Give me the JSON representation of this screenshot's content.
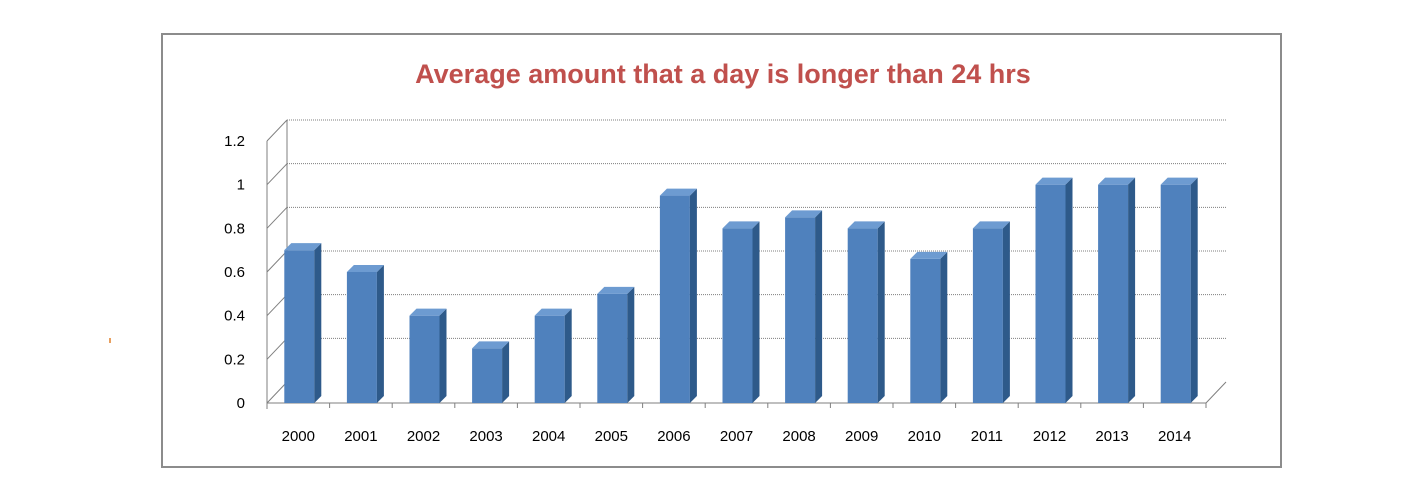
{
  "chart_data": {
    "type": "bar",
    "title": "Average amount that a day is longer than 24 hrs",
    "xlabel": "",
    "ylabel": "",
    "categories": [
      "2000",
      "2001",
      "2002",
      "2003",
      "2004",
      "2005",
      "2006",
      "2007",
      "2008",
      "2009",
      "2010",
      "2011",
      "2012",
      "2013",
      "2014"
    ],
    "values": [
      0.7,
      0.6,
      0.4,
      0.25,
      0.4,
      0.5,
      0.95,
      0.8,
      0.85,
      0.8,
      0.66,
      0.8,
      1.0,
      1.0,
      1.0
    ],
    "ylim": [
      0,
      1.2
    ],
    "yticks": [
      "0",
      "0.2",
      "0.4",
      "0.6",
      "0.8",
      "1",
      "1.2"
    ],
    "grid": true,
    "legend": "none",
    "style": "3d-column",
    "colors": {
      "title": "#c0504d",
      "bar_front": "#4f81bd",
      "bar_side": "#2e5a8a",
      "bar_top": "#6d9bd1",
      "grid": "#7f7f7f",
      "frame": "#8c8c8c"
    }
  }
}
